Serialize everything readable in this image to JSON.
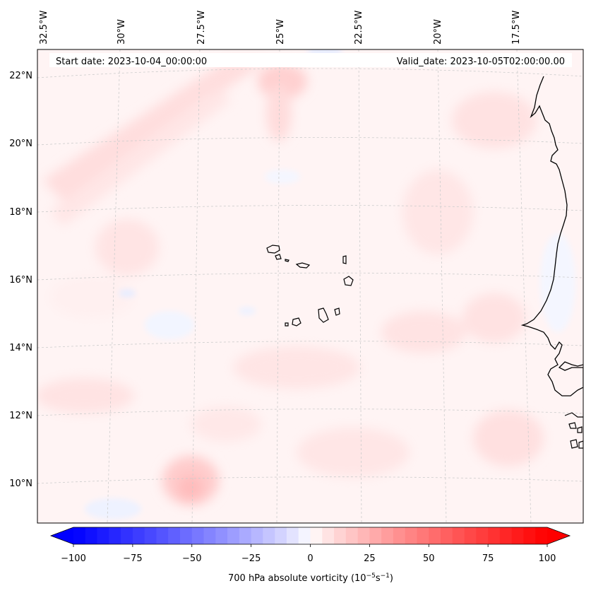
{
  "header": {
    "start_date": "Start date: 2023-10-04_00:00:00",
    "valid_date": "Valid_date: 2023-10-05T02:00:00.00"
  },
  "map": {
    "lon_labels": [
      "32.5°W",
      "30°W",
      "27.5°W",
      "25°W",
      "22.5°W",
      "20°W",
      "17.5°W"
    ],
    "lat_labels": [
      "22°N",
      "20°N",
      "18°N",
      "16°N",
      "14°N",
      "12°N",
      "10°N"
    ],
    "grid_color": "#cccccc",
    "coast_color": "#000000"
  },
  "colorbar": {
    "title": "700 hPa absolute vorticity (10",
    "title_exp1": "−5",
    "title_mid": "s",
    "title_exp2": "−1",
    "title_end": ")",
    "ticks": [
      "−100",
      "−75",
      "−50",
      "−25",
      "0",
      "25",
      "50",
      "75",
      "100"
    ],
    "min_color": "#0000ff",
    "mid_color": "#ffffff",
    "max_color": "#ff0000"
  }
}
